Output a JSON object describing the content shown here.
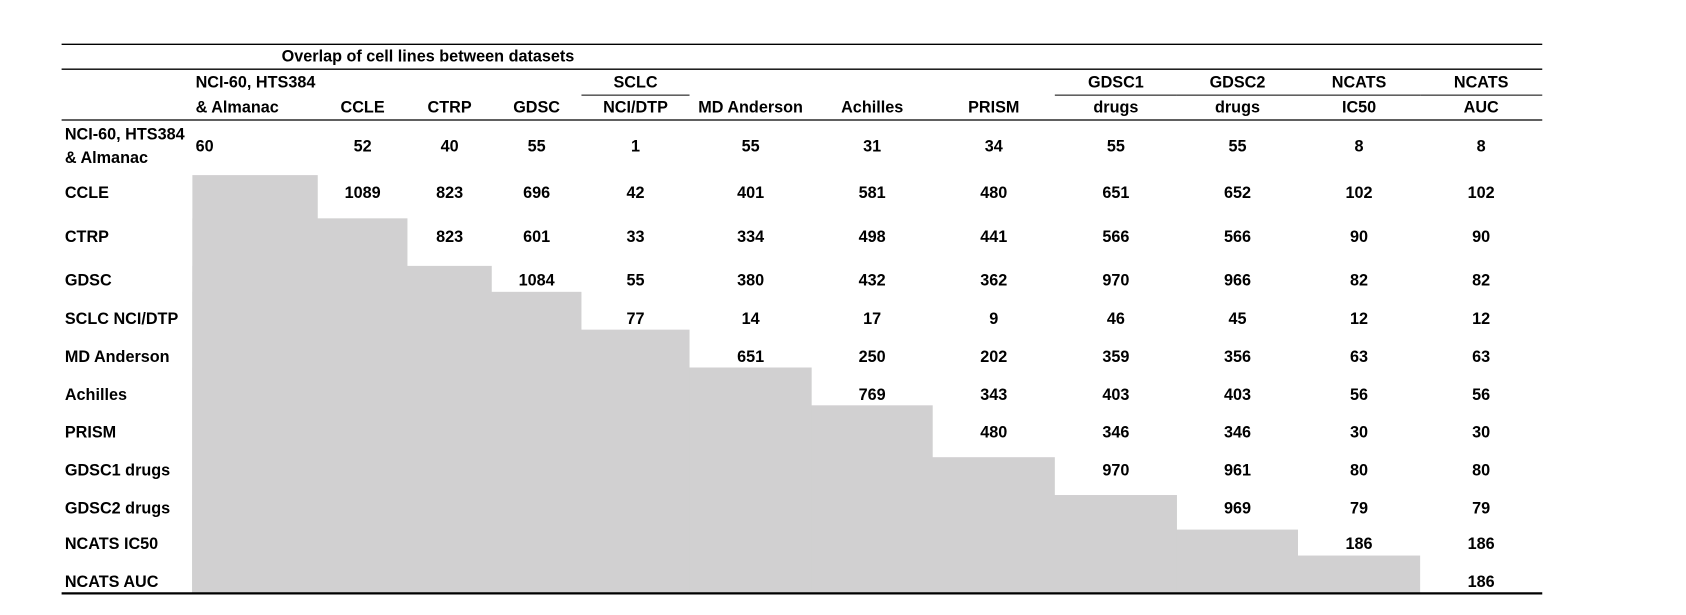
{
  "title": "Overlap of cell lines between datasets",
  "columns": [
    [
      "NCI-60, HTS384",
      "& Almanac"
    ],
    [
      "CCLE"
    ],
    [
      "CTRP"
    ],
    [
      "GDSC"
    ],
    [
      "SCLC",
      "NCI/DTP"
    ],
    [
      "MD Anderson"
    ],
    [
      "Achilles"
    ],
    [
      "PRISM"
    ],
    [
      "GDSC1",
      "drugs"
    ],
    [
      "GDSC2",
      "drugs"
    ],
    [
      "NCATS",
      "IC50"
    ],
    [
      "NCATS",
      "AUC"
    ]
  ],
  "rows": [
    {
      "label": [
        "NCI-60, HTS384",
        "& Almanac"
      ],
      "values": [
        60,
        52,
        40,
        55,
        1,
        55,
        31,
        34,
        55,
        55,
        8,
        8
      ]
    },
    {
      "label": [
        "CCLE"
      ],
      "values": [
        1089,
        823,
        696,
        42,
        401,
        581,
        480,
        651,
        652,
        102,
        102
      ]
    },
    {
      "label": [
        "CTRP"
      ],
      "values": [
        823,
        601,
        33,
        334,
        498,
        441,
        566,
        566,
        90,
        90
      ]
    },
    {
      "label": [
        "GDSC"
      ],
      "values": [
        1084,
        55,
        380,
        432,
        362,
        970,
        966,
        82,
        82
      ]
    },
    {
      "label": [
        "SCLC NCI/DTP"
      ],
      "values": [
        77,
        14,
        17,
        9,
        46,
        45,
        12,
        12
      ]
    },
    {
      "label": [
        "MD Anderson"
      ],
      "values": [
        651,
        250,
        202,
        359,
        356,
        63,
        63
      ]
    },
    {
      "label": [
        "Achilles"
      ],
      "values": [
        769,
        343,
        403,
        403,
        56,
        56
      ]
    },
    {
      "label": [
        "PRISM"
      ],
      "values": [
        480,
        346,
        346,
        30,
        30
      ]
    },
    {
      "label": [
        "GDSC1 drugs"
      ],
      "values": [
        970,
        961,
        80,
        80
      ]
    },
    {
      "label": [
        "GDSC2 drugs"
      ],
      "values": [
        969,
        79,
        79
      ]
    },
    {
      "label": [
        "NCATS IC50"
      ],
      "values": [
        186,
        186
      ]
    },
    {
      "label": [
        "NCATS AUC"
      ],
      "values": [
        186
      ]
    }
  ]
}
